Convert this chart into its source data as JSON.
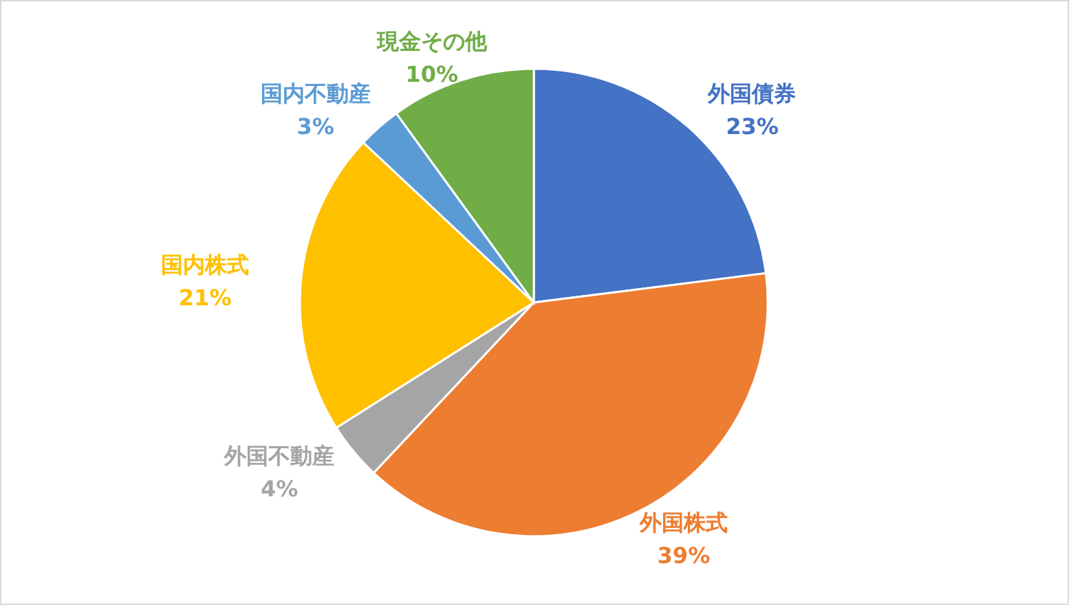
{
  "chart_data": {
    "type": "pie",
    "categories": [
      "外国債券",
      "外国株式",
      "外国不動産",
      "国内株式",
      "国内不動産",
      "現金その他"
    ],
    "values": [
      23,
      39,
      4,
      21,
      3,
      10
    ],
    "value_labels": [
      "23%",
      "39%",
      "4%",
      "21%",
      "3%",
      "10%"
    ],
    "colors": [
      "#4472c4",
      "#ed7d31",
      "#a5a5a5",
      "#ffc000",
      "#5b9bd5",
      "#70ad47"
    ]
  }
}
